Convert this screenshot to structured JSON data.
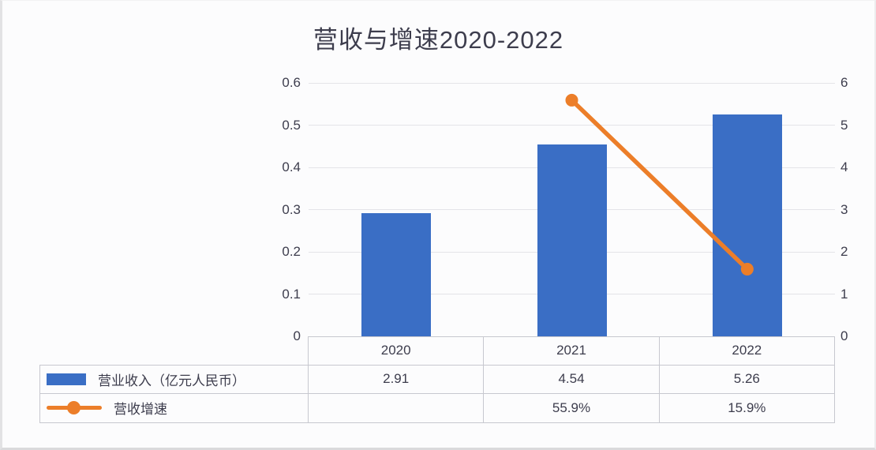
{
  "chart_data": {
    "type": "bar+line",
    "title": "营收与增速2020-2022",
    "categories": [
      "2020",
      "2021",
      "2022"
    ],
    "series": [
      {
        "name": "营业收入（亿元人民币）",
        "type": "bar",
        "axis": "right",
        "values": [
          2.91,
          4.54,
          5.26
        ],
        "table_labels": [
          "2.91",
          "4.54",
          "5.26"
        ],
        "color": "#3a6ec5"
      },
      {
        "name": "营收增速",
        "type": "line",
        "axis": "left",
        "values": [
          null,
          0.559,
          0.159
        ],
        "table_labels": [
          "",
          "55.9%",
          "15.9%"
        ],
        "color": "#ec7e29"
      }
    ],
    "left_axis": {
      "min": 0,
      "max": 0.6,
      "ticks": [
        "0.6",
        "0.5",
        "0.4",
        "0.3",
        "0.2",
        "0.1",
        "0"
      ]
    },
    "right_axis": {
      "min": 0,
      "max": 6,
      "ticks": [
        "6",
        "5",
        "4",
        "3",
        "2",
        "1",
        "0"
      ]
    },
    "grid": true,
    "legend_position": "table-left"
  },
  "colors": {
    "bar": "#3a6ec5",
    "line": "#ec7e29",
    "text": "#3d3d4d",
    "gridline": "#e4e4e8",
    "table_border": "#c7c8cf",
    "background": "#fcfcfd"
  }
}
